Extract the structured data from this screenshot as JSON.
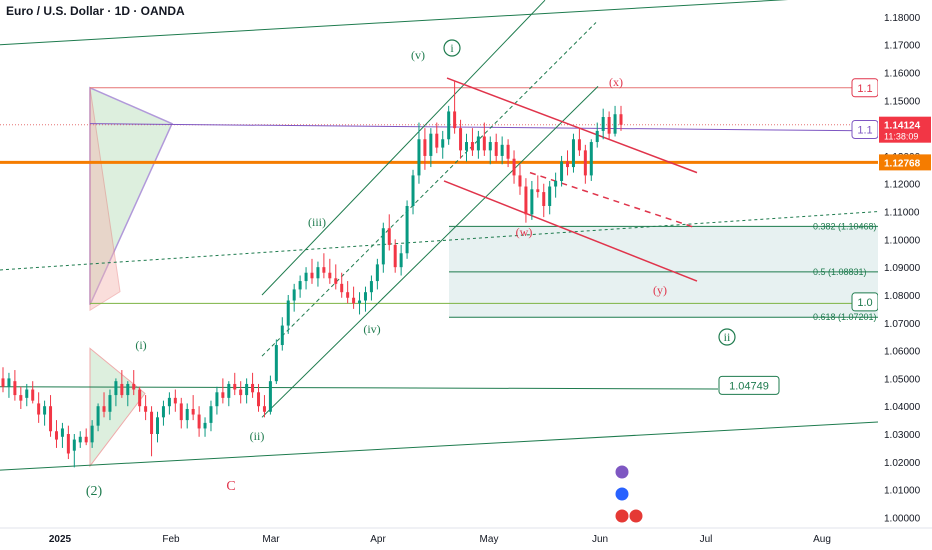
{
  "header": {
    "title": "Euro / U.S. Dollar · 1D · OANDA"
  },
  "colors": {
    "up": "#089981",
    "down": "#f23645",
    "channel": "#1e7b4e",
    "red_line": "#e0344b",
    "orange": "#f57c00",
    "purple": "#7e57c2",
    "zone": "#e3efef",
    "axis_text": "#131722"
  },
  "chart_data": {
    "type": "candlestick",
    "instrument": "Euro / U.S. Dollar",
    "interval": "1D",
    "source": "OANDA",
    "x_ticks": [
      "2025",
      "Feb",
      "Mar",
      "Apr",
      "May",
      "Jun",
      "Jul",
      "Aug"
    ],
    "y_ticks": [
      "1.18000",
      "1.17000",
      "1.16000",
      "1.15000",
      "1.14000",
      "1.13000",
      "1.12000",
      "1.11000",
      "1.10000",
      "1.09000",
      "1.08000",
      "1.07000",
      "1.06000",
      "1.05000",
      "1.04000",
      "1.03000",
      "1.02000",
      "1.01000",
      "1.00000"
    ],
    "ylim": [
      0.9962,
      1.1832
    ],
    "current_price": "1.14124",
    "countdown": "11:38:09",
    "orange_level": "1.12768",
    "level_box_right": "1.04749",
    "level_tag_red": "1.1",
    "level_tag_purple": "1.1",
    "level_tag_green": "1.0",
    "fib_levels": [
      {
        "label": "0.382 (1.10468)",
        "value": 1.10468
      },
      {
        "label": "0.5 (1.08831)",
        "value": 1.08831
      },
      {
        "label": "0.618 (1.07201)",
        "value": 1.07201
      }
    ],
    "wave_labels": [
      "(v)",
      "i",
      "(iii)",
      "(iv)",
      "(ii)",
      "(i)",
      "(2)",
      "C",
      "(w)",
      "(x)",
      "(y)",
      "ii"
    ],
    "candles": [
      {
        "o": 1.05,
        "h": 1.054,
        "l": 1.045,
        "c": 1.047
      },
      {
        "o": 1.047,
        "h": 1.052,
        "l": 1.043,
        "c": 1.05
      },
      {
        "o": 1.049,
        "h": 1.053,
        "l": 1.042,
        "c": 1.044
      },
      {
        "o": 1.044,
        "h": 1.047,
        "l": 1.039,
        "c": 1.042
      },
      {
        "o": 1.043,
        "h": 1.048,
        "l": 1.04,
        "c": 1.046
      },
      {
        "o": 1.046,
        "h": 1.049,
        "l": 1.041,
        "c": 1.042
      },
      {
        "o": 1.041,
        "h": 1.045,
        "l": 1.034,
        "c": 1.037
      },
      {
        "o": 1.037,
        "h": 1.042,
        "l": 1.033,
        "c": 1.04
      },
      {
        "o": 1.04,
        "h": 1.044,
        "l": 1.029,
        "c": 1.031
      },
      {
        "o": 1.031,
        "h": 1.035,
        "l": 1.025,
        "c": 1.028
      },
      {
        "o": 1.029,
        "h": 1.034,
        "l": 1.025,
        "c": 1.032
      },
      {
        "o": 1.03,
        "h": 1.033,
        "l": 1.021,
        "c": 1.023
      },
      {
        "o": 1.024,
        "h": 1.03,
        "l": 1.018,
        "c": 1.028
      },
      {
        "o": 1.027,
        "h": 1.031,
        "l": 1.025,
        "c": 1.029
      },
      {
        "o": 1.029,
        "h": 1.032,
        "l": 1.026,
        "c": 1.027
      },
      {
        "o": 1.027,
        "h": 1.035,
        "l": 1.025,
        "c": 1.033
      },
      {
        "o": 1.033,
        "h": 1.041,
        "l": 1.031,
        "c": 1.04
      },
      {
        "o": 1.04,
        "h": 1.045,
        "l": 1.036,
        "c": 1.038
      },
      {
        "o": 1.038,
        "h": 1.046,
        "l": 1.035,
        "c": 1.044
      },
      {
        "o": 1.044,
        "h": 1.05,
        "l": 1.04,
        "c": 1.049
      },
      {
        "o": 1.048,
        "h": 1.053,
        "l": 1.043,
        "c": 1.044
      },
      {
        "o": 1.044,
        "h": 1.049,
        "l": 1.04,
        "c": 1.048
      },
      {
        "o": 1.048,
        "h": 1.053,
        "l": 1.044,
        "c": 1.046
      },
      {
        "o": 1.046,
        "h": 1.047,
        "l": 1.038,
        "c": 1.04
      },
      {
        "o": 1.04,
        "h": 1.044,
        "l": 1.035,
        "c": 1.038
      },
      {
        "o": 1.038,
        "h": 1.04,
        "l": 1.022,
        "c": 1.03
      },
      {
        "o": 1.03,
        "h": 1.038,
        "l": 1.027,
        "c": 1.036
      },
      {
        "o": 1.036,
        "h": 1.042,
        "l": 1.033,
        "c": 1.04
      },
      {
        "o": 1.04,
        "h": 1.045,
        "l": 1.037,
        "c": 1.043
      },
      {
        "o": 1.043,
        "h": 1.046,
        "l": 1.038,
        "c": 1.041
      },
      {
        "o": 1.041,
        "h": 1.043,
        "l": 1.032,
        "c": 1.035
      },
      {
        "o": 1.035,
        "h": 1.041,
        "l": 1.032,
        "c": 1.039
      },
      {
        "o": 1.039,
        "h": 1.044,
        "l": 1.035,
        "c": 1.037
      },
      {
        "o": 1.037,
        "h": 1.04,
        "l": 1.029,
        "c": 1.032
      },
      {
        "o": 1.032,
        "h": 1.036,
        "l": 1.029,
        "c": 1.034
      },
      {
        "o": 1.034,
        "h": 1.042,
        "l": 1.031,
        "c": 1.04
      },
      {
        "o": 1.04,
        "h": 1.047,
        "l": 1.037,
        "c": 1.045
      },
      {
        "o": 1.045,
        "h": 1.05,
        "l": 1.041,
        "c": 1.043
      },
      {
        "o": 1.043,
        "h": 1.049,
        "l": 1.04,
        "c": 1.048
      },
      {
        "o": 1.048,
        "h": 1.052,
        "l": 1.044,
        "c": 1.046
      },
      {
        "o": 1.046,
        "h": 1.049,
        "l": 1.041,
        "c": 1.044
      },
      {
        "o": 1.044,
        "h": 1.05,
        "l": 1.041,
        "c": 1.048
      },
      {
        "o": 1.048,
        "h": 1.052,
        "l": 1.043,
        "c": 1.045
      },
      {
        "o": 1.045,
        "h": 1.048,
        "l": 1.038,
        "c": 1.04
      },
      {
        "o": 1.04,
        "h": 1.044,
        "l": 1.036,
        "c": 1.038
      },
      {
        "o": 1.038,
        "h": 1.051,
        "l": 1.037,
        "c": 1.049
      },
      {
        "o": 1.049,
        "h": 1.064,
        "l": 1.048,
        "c": 1.062
      },
      {
        "o": 1.062,
        "h": 1.072,
        "l": 1.06,
        "c": 1.069
      },
      {
        "o": 1.069,
        "h": 1.08,
        "l": 1.066,
        "c": 1.078
      },
      {
        "o": 1.078,
        "h": 1.084,
        "l": 1.074,
        "c": 1.082
      },
      {
        "o": 1.082,
        "h": 1.087,
        "l": 1.079,
        "c": 1.085
      },
      {
        "o": 1.085,
        "h": 1.09,
        "l": 1.082,
        "c": 1.088
      },
      {
        "o": 1.088,
        "h": 1.093,
        "l": 1.084,
        "c": 1.086
      },
      {
        "o": 1.086,
        "h": 1.092,
        "l": 1.083,
        "c": 1.09
      },
      {
        "o": 1.09,
        "h": 1.095,
        "l": 1.086,
        "c": 1.088
      },
      {
        "o": 1.088,
        "h": 1.093,
        "l": 1.084,
        "c": 1.086
      },
      {
        "o": 1.086,
        "h": 1.091,
        "l": 1.082,
        "c": 1.084
      },
      {
        "o": 1.084,
        "h": 1.088,
        "l": 1.079,
        "c": 1.081
      },
      {
        "o": 1.081,
        "h": 1.085,
        "l": 1.077,
        "c": 1.079
      },
      {
        "o": 1.079,
        "h": 1.083,
        "l": 1.075,
        "c": 1.077
      },
      {
        "o": 1.077,
        "h": 1.081,
        "l": 1.073,
        "c": 1.078
      },
      {
        "o": 1.078,
        "h": 1.083,
        "l": 1.074,
        "c": 1.081
      },
      {
        "o": 1.081,
        "h": 1.087,
        "l": 1.078,
        "c": 1.085
      },
      {
        "o": 1.085,
        "h": 1.093,
        "l": 1.082,
        "c": 1.091
      },
      {
        "o": 1.091,
        "h": 1.106,
        "l": 1.088,
        "c": 1.104
      },
      {
        "o": 1.104,
        "h": 1.109,
        "l": 1.096,
        "c": 1.098
      },
      {
        "o": 1.098,
        "h": 1.1,
        "l": 1.088,
        "c": 1.09
      },
      {
        "o": 1.09,
        "h": 1.098,
        "l": 1.087,
        "c": 1.095
      },
      {
        "o": 1.095,
        "h": 1.114,
        "l": 1.093,
        "c": 1.112
      },
      {
        "o": 1.112,
        "h": 1.125,
        "l": 1.109,
        "c": 1.123
      },
      {
        "o": 1.123,
        "h": 1.142,
        "l": 1.12,
        "c": 1.136
      },
      {
        "o": 1.136,
        "h": 1.14,
        "l": 1.125,
        "c": 1.13
      },
      {
        "o": 1.13,
        "h": 1.14,
        "l": 1.126,
        "c": 1.138
      },
      {
        "o": 1.138,
        "h": 1.142,
        "l": 1.131,
        "c": 1.133
      },
      {
        "o": 1.133,
        "h": 1.139,
        "l": 1.129,
        "c": 1.136
      },
      {
        "o": 1.136,
        "h": 1.148,
        "l": 1.134,
        "c": 1.146
      },
      {
        "o": 1.146,
        "h": 1.157,
        "l": 1.138,
        "c": 1.14
      },
      {
        "o": 1.14,
        "h": 1.143,
        "l": 1.129,
        "c": 1.132
      },
      {
        "o": 1.132,
        "h": 1.138,
        "l": 1.128,
        "c": 1.135
      },
      {
        "o": 1.135,
        "h": 1.14,
        "l": 1.13,
        "c": 1.132
      },
      {
        "o": 1.132,
        "h": 1.139,
        "l": 1.129,
        "c": 1.137
      },
      {
        "o": 1.137,
        "h": 1.142,
        "l": 1.13,
        "c": 1.132
      },
      {
        "o": 1.132,
        "h": 1.137,
        "l": 1.127,
        "c": 1.135
      },
      {
        "o": 1.135,
        "h": 1.138,
        "l": 1.128,
        "c": 1.13
      },
      {
        "o": 1.13,
        "h": 1.137,
        "l": 1.127,
        "c": 1.134
      },
      {
        "o": 1.134,
        "h": 1.136,
        "l": 1.126,
        "c": 1.129
      },
      {
        "o": 1.129,
        "h": 1.132,
        "l": 1.12,
        "c": 1.123
      },
      {
        "o": 1.123,
        "h": 1.127,
        "l": 1.116,
        "c": 1.119
      },
      {
        "o": 1.119,
        "h": 1.122,
        "l": 1.106,
        "c": 1.109
      },
      {
        "o": 1.109,
        "h": 1.121,
        "l": 1.107,
        "c": 1.118
      },
      {
        "o": 1.118,
        "h": 1.123,
        "l": 1.115,
        "c": 1.117
      },
      {
        "o": 1.117,
        "h": 1.12,
        "l": 1.108,
        "c": 1.112
      },
      {
        "o": 1.112,
        "h": 1.121,
        "l": 1.109,
        "c": 1.119
      },
      {
        "o": 1.119,
        "h": 1.124,
        "l": 1.115,
        "c": 1.121
      },
      {
        "o": 1.121,
        "h": 1.13,
        "l": 1.119,
        "c": 1.128
      },
      {
        "o": 1.128,
        "h": 1.132,
        "l": 1.123,
        "c": 1.126
      },
      {
        "o": 1.126,
        "h": 1.138,
        "l": 1.124,
        "c": 1.136
      },
      {
        "o": 1.136,
        "h": 1.14,
        "l": 1.13,
        "c": 1.132
      },
      {
        "o": 1.132,
        "h": 1.134,
        "l": 1.12,
        "c": 1.123
      },
      {
        "o": 1.123,
        "h": 1.136,
        "l": 1.121,
        "c": 1.135
      },
      {
        "o": 1.135,
        "h": 1.142,
        "l": 1.133,
        "c": 1.139
      },
      {
        "o": 1.139,
        "h": 1.147,
        "l": 1.136,
        "c": 1.144
      },
      {
        "o": 1.144,
        "h": 1.146,
        "l": 1.136,
        "c": 1.138
      },
      {
        "o": 1.138,
        "h": 1.148,
        "l": 1.137,
        "c": 1.145
      },
      {
        "o": 1.145,
        "h": 1.148,
        "l": 1.139,
        "c": 1.1412
      }
    ]
  }
}
